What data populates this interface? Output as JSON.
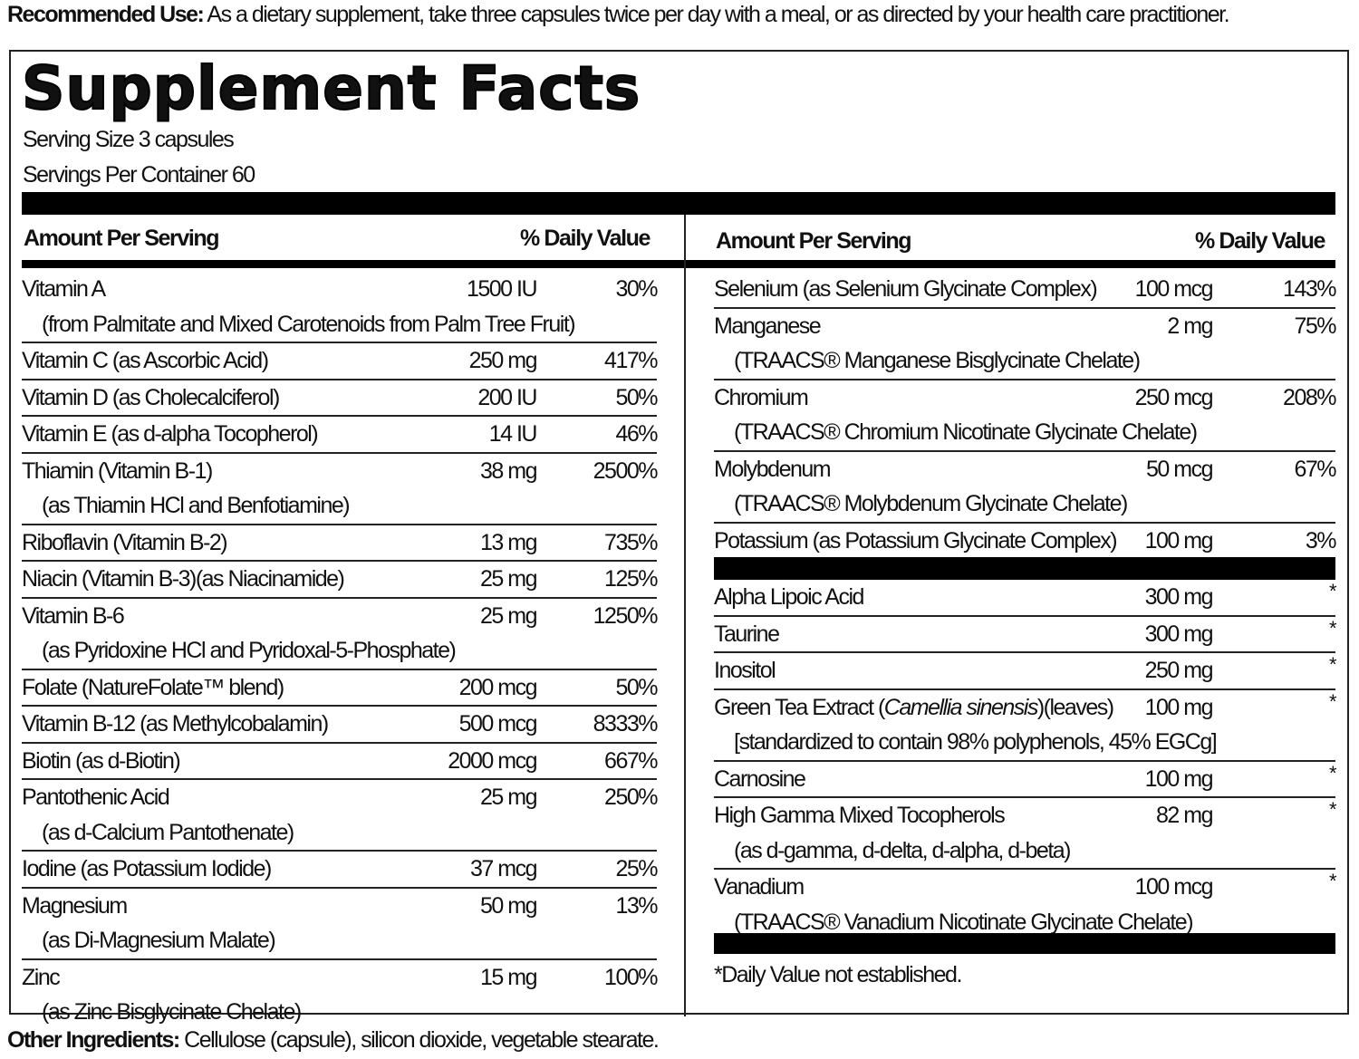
{
  "recommended_use": {
    "label": "Recommended Use:",
    "text": " As a dietary supplement, take three capsules twice per day with a meal, or as directed by your health care practitioner."
  },
  "title": "Supplement Facts",
  "serving_size": "Serving Size 3 capsules",
  "servings_per_container": "Servings Per Container 60",
  "header": {
    "amount": "Amount Per Serving",
    "dv": "% Daily Value"
  },
  "left_rows": [
    {
      "name": "Vitamin A",
      "sub": "(from Palmitate and Mixed Carotenoids from Palm Tree Fruit)",
      "amount": "1500 IU",
      "dv": "30%"
    },
    {
      "name": "Vitamin C (as Ascorbic Acid)",
      "amount": "250 mg",
      "dv": "417%"
    },
    {
      "name": "Vitamin D (as Cholecalciferol)",
      "amount": "200 IU",
      "dv": "50%"
    },
    {
      "name": "Vitamin E (as d-alpha Tocopherol)",
      "amount": "14 IU",
      "dv": "46%"
    },
    {
      "name": "Thiamin (Vitamin B-1)",
      "sub": "(as Thiamin HCl  and Benfotiamine)",
      "amount": "38 mg",
      "dv": "2500%"
    },
    {
      "name": "Riboflavin (Vitamin B-2)",
      "amount": "13 mg",
      "dv": "735%"
    },
    {
      "name": "Niacin (Vitamin B-3)(as Niacinamide)",
      "amount": "25 mg",
      "dv": "125%"
    },
    {
      "name": "Vitamin B-6",
      "sub": "(as Pyridoxine HCl and Pyridoxal-5-Phosphate)",
      "amount": "25 mg",
      "dv": "1250%"
    },
    {
      "name": "Folate (NatureFolate™ blend)",
      "amount": "200 mcg",
      "dv": "50%"
    },
    {
      "name": "Vitamin B-12 (as Methylcobalamin)",
      "amount": "500 mcg",
      "dv": "8333%"
    },
    {
      "name": "Biotin (as d-Biotin)",
      "amount": "2000 mcg",
      "dv": "667%"
    },
    {
      "name": "Pantothenic Acid",
      "sub": "(as d-Calcium Pantothenate)",
      "amount": "25 mg",
      "dv": "250%"
    },
    {
      "name": "Iodine (as Potassium Iodide)",
      "amount": "37 mcg",
      "dv": "25%"
    },
    {
      "name": "Magnesium",
      "sub": "(as Di-Magnesium Malate)",
      "amount": "50 mg",
      "dv": "13%"
    },
    {
      "name": "Zinc",
      "sub": "(as Zinc Bisglycinate Chelate)",
      "amount": "15 mg",
      "dv": "100%"
    }
  ],
  "right_rows": [
    {
      "name": "Selenium (as Selenium Glycinate Complex)",
      "amount": "100 mcg",
      "dv": "143%"
    },
    {
      "name": "Manganese",
      "sub": "(TRAACS® Manganese Bisglycinate Chelate)",
      "amount": "2 mg",
      "dv": "75%"
    },
    {
      "name": "Chromium",
      "sub": "(TRAACS® Chromium Nicotinate Glycinate Chelate)",
      "amount": "250 mcg",
      "dv": "208%"
    },
    {
      "name": "Molybdenum",
      "sub": "(TRAACS® Molybdenum Glycinate Chelate)",
      "amount": "50 mcg",
      "dv": "67%"
    },
    {
      "name": "Potassium (as Potassium Glycinate Complex)",
      "amount": "100 mg",
      "dv": "3%"
    }
  ],
  "other_rows": [
    {
      "name": "Alpha Lipoic Acid",
      "amount": "300 mg",
      "dv": "*"
    },
    {
      "name": "Taurine",
      "amount": "300 mg",
      "dv": "*"
    },
    {
      "name": "Inositol",
      "amount": "250 mg",
      "dv": "*"
    },
    {
      "name": "Green Tea Extract (",
      "name_italic": "Camellia sinensis",
      "name_post": ")(leaves)",
      "sub": "[standardized to contain 98% polyphenols, 45% EGCg]",
      "amount": "100 mg",
      "dv": "*"
    },
    {
      "name": "Carnosine",
      "amount": "100 mg",
      "dv": "*"
    },
    {
      "name": "High Gamma Mixed Tocopherols",
      "sub": "(as d-gamma, d-delta, d-alpha, d-beta)",
      "amount": "82 mg",
      "dv": "*"
    },
    {
      "name": "Vanadium",
      "sub": "(TRAACS® Vanadium Nicotinate Glycinate Chelate)",
      "amount": "100 mcg",
      "dv": "*"
    }
  ],
  "footnote": "*Daily Value not established.",
  "other_ingredients": {
    "label": "Other Ingredients:",
    "text": " Cellulose (capsule), silicon dioxide, vegetable stearate."
  }
}
